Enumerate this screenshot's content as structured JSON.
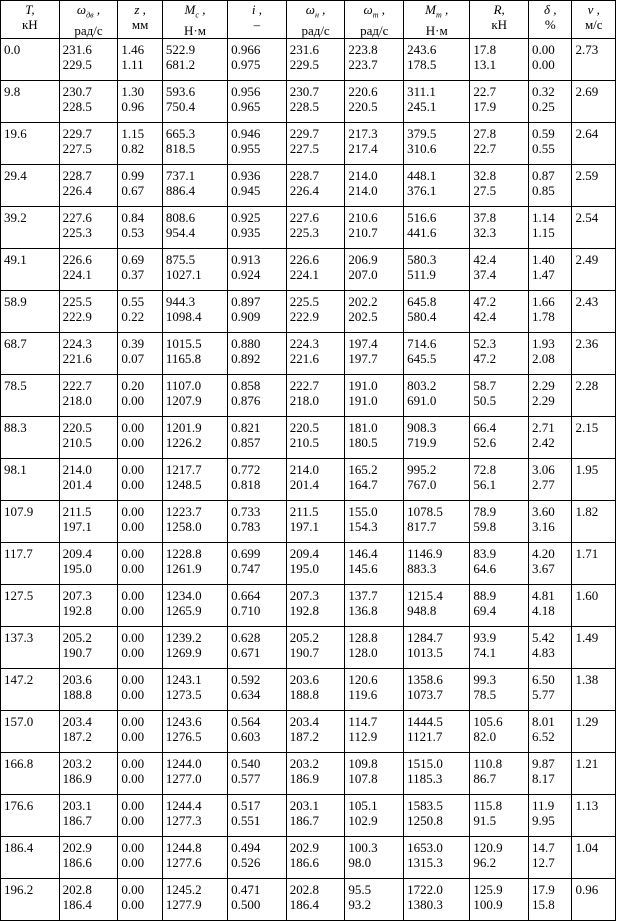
{
  "headers": [
    {
      "sym": "T,",
      "sub": "",
      "unit": "кН"
    },
    {
      "sym": "ω",
      "sub": "дв",
      "unit": "рад/с",
      "tail": " ,"
    },
    {
      "sym": "z ,",
      "sub": "",
      "unit": "мм"
    },
    {
      "sym": "M",
      "sub": "c",
      "unit": "Н·м",
      "tail": " ,"
    },
    {
      "sym": "i ,",
      "sub": "",
      "unit": "–"
    },
    {
      "sym": "ω",
      "sub": "н",
      "unit": "рад/с",
      "tail": " ,"
    },
    {
      "sym": "ω",
      "sub": "т",
      "unit": "рад/с",
      "tail": " ,"
    },
    {
      "sym": "M",
      "sub": "т",
      "unit": "Н·м",
      "tail": " ,"
    },
    {
      "sym": "R,",
      "sub": "",
      "unit": "кН"
    },
    {
      "sym": "δ ,",
      "sub": "",
      "unit": "%"
    },
    {
      "sym": "ν ,",
      "sub": "",
      "unit": "м/с"
    }
  ],
  "rows": [
    {
      "T": "0.0",
      "w_dv": [
        "231.6",
        "229.5"
      ],
      "z": [
        "1.46",
        "1.11"
      ],
      "Mc": [
        "522.9",
        "681.2"
      ],
      "i": [
        "0.966",
        "0.975"
      ],
      "w_n": [
        "231.6",
        "229.5"
      ],
      "w_t": [
        "223.8",
        "223.7"
      ],
      "Mt": [
        "243.6",
        "178.5"
      ],
      "R": [
        "17.8",
        "13.1"
      ],
      "delta": [
        "0.00",
        "0.00"
      ],
      "v": "2.73"
    },
    {
      "T": "9.8",
      "w_dv": [
        "230.7",
        "228.5"
      ],
      "z": [
        "1.30",
        "0.96"
      ],
      "Mc": [
        "593.6",
        "750.4"
      ],
      "i": [
        "0.956",
        "0.965"
      ],
      "w_n": [
        "230.7",
        "228.5"
      ],
      "w_t": [
        "220.6",
        "220.5"
      ],
      "Mt": [
        "311.1",
        "245.1"
      ],
      "R": [
        "22.7",
        "17.9"
      ],
      "delta": [
        "0.32",
        "0.25"
      ],
      "v": "2.69"
    },
    {
      "T": "19.6",
      "w_dv": [
        "229.7",
        "227.5"
      ],
      "z": [
        "1.15",
        "0.82"
      ],
      "Mc": [
        "665.3",
        "818.5"
      ],
      "i": [
        "0.946",
        "0.955"
      ],
      "w_n": [
        "229.7",
        "227.5"
      ],
      "w_t": [
        "217.3",
        "217.4"
      ],
      "Mt": [
        "379.5",
        "310.6"
      ],
      "R": [
        "27.8",
        "22.7"
      ],
      "delta": [
        "0.59",
        "0.55"
      ],
      "v": "2.64"
    },
    {
      "T": "29.4",
      "w_dv": [
        "228.7",
        "226.4"
      ],
      "z": [
        "0.99",
        "0.67"
      ],
      "Mc": [
        "737.1",
        "886.4"
      ],
      "i": [
        "0.936",
        "0.945"
      ],
      "w_n": [
        "228.7",
        "226.4"
      ],
      "w_t": [
        "214.0",
        "214.0"
      ],
      "Mt": [
        "448.1",
        "376.1"
      ],
      "R": [
        "32.8",
        "27.5"
      ],
      "delta": [
        "0.87",
        "0.85"
      ],
      "v": "2.59"
    },
    {
      "T": "39.2",
      "w_dv": [
        "227.6",
        "225.3"
      ],
      "z": [
        "0.84",
        "0.53"
      ],
      "Mc": [
        "808.6",
        "954.4"
      ],
      "i": [
        "0.925",
        "0.935"
      ],
      "w_n": [
        "227.6",
        "225.3"
      ],
      "w_t": [
        "210.6",
        "210.7"
      ],
      "Mt": [
        "516.6",
        "441.6"
      ],
      "R": [
        "37.8",
        "32.3"
      ],
      "delta": [
        "1.14",
        "1.15"
      ],
      "v": "2.54"
    },
    {
      "T": "49.1",
      "w_dv": [
        "226.6",
        "224.1"
      ],
      "z": [
        "0.69",
        "0.37"
      ],
      "Mc": [
        "875.5",
        "1027.1"
      ],
      "i": [
        "0.913",
        "0.924"
      ],
      "w_n": [
        "226.6",
        "224.1"
      ],
      "w_t": [
        "206.9",
        "207.0"
      ],
      "Mt": [
        "580.3",
        "511.9"
      ],
      "R": [
        "42.4",
        "37.4"
      ],
      "delta": [
        "1.40",
        "1.47"
      ],
      "v": "2.49"
    },
    {
      "T": "58.9",
      "w_dv": [
        "225.5",
        "222.9"
      ],
      "z": [
        "0.55",
        "0.22"
      ],
      "Mc": [
        "944.3",
        "1098.4"
      ],
      "i": [
        "0.897",
        "0.909"
      ],
      "w_n": [
        "225.5",
        "222.9"
      ],
      "w_t": [
        "202.2",
        "202.5"
      ],
      "Mt": [
        "645.8",
        "580.4"
      ],
      "R": [
        "47.2",
        "42.4"
      ],
      "delta": [
        "1.66",
        "1.78"
      ],
      "v": "2.43"
    },
    {
      "T": "68.7",
      "w_dv": [
        "224.3",
        "221.6"
      ],
      "z": [
        "0.39",
        "0.07"
      ],
      "Mc": [
        "1015.5",
        "1165.8"
      ],
      "i": [
        "0.880",
        "0.892"
      ],
      "w_n": [
        "224.3",
        "221.6"
      ],
      "w_t": [
        "197.4",
        "197.7"
      ],
      "Mt": [
        "714.6",
        "645.5"
      ],
      "R": [
        "52.3",
        "47.2"
      ],
      "delta": [
        "1.93",
        "2.08"
      ],
      "v": "2.36"
    },
    {
      "T": "78.5",
      "w_dv": [
        "222.7",
        "218.0"
      ],
      "z": [
        "0.20",
        "0.00"
      ],
      "Mc": [
        "1107.0",
        "1207.9"
      ],
      "i": [
        "0.858",
        "0.876"
      ],
      "w_n": [
        "222.7",
        "218.0"
      ],
      "w_t": [
        "191.0",
        "191.0"
      ],
      "Mt": [
        "803.2",
        "691.0"
      ],
      "R": [
        "58.7",
        "50.5"
      ],
      "delta": [
        "2.29",
        "2.29"
      ],
      "v": "2.28"
    },
    {
      "T": "88.3",
      "w_dv": [
        "220.5",
        "210.5"
      ],
      "z": [
        "0.00",
        "0.00"
      ],
      "Mc": [
        "1201.9",
        "1226.2"
      ],
      "i": [
        "0.821",
        "0.857"
      ],
      "w_n": [
        "220.5",
        "210.5"
      ],
      "w_t": [
        "181.0",
        "180.5"
      ],
      "Mt": [
        "908.3",
        "719.9"
      ],
      "R": [
        "66.4",
        "52.6"
      ],
      "delta": [
        "2.71",
        "2.42"
      ],
      "v": "2.15"
    },
    {
      "T": "98.1",
      "w_dv": [
        "214.0",
        "201.4"
      ],
      "z": [
        "0.00",
        "0.00"
      ],
      "Mc": [
        "1217.7",
        "1248.5"
      ],
      "i": [
        "0.772",
        "0.818"
      ],
      "w_n": [
        "214.0",
        "201.4"
      ],
      "w_t": [
        "165.2",
        "164.7"
      ],
      "Mt": [
        "995.2",
        "767.0"
      ],
      "R": [
        "72.8",
        "56.1"
      ],
      "delta": [
        "3.06",
        "2.77"
      ],
      "v": "1.95"
    },
    {
      "T": "107.9",
      "w_dv": [
        "211.5",
        "197.1"
      ],
      "z": [
        "0.00",
        "0.00"
      ],
      "Mc": [
        "1223.7",
        "1258.0"
      ],
      "i": [
        "0.733",
        "0.783"
      ],
      "w_n": [
        "211.5",
        "197.1"
      ],
      "w_t": [
        "155.0",
        "154.3"
      ],
      "Mt": [
        "1078.5",
        "817.7"
      ],
      "R": [
        "78.9",
        "59.8"
      ],
      "delta": [
        "3.60",
        "3.16"
      ],
      "v": "1.82"
    },
    {
      "T": "117.7",
      "w_dv": [
        "209.4",
        "195.0"
      ],
      "z": [
        "0.00",
        "0.00"
      ],
      "Mc": [
        "1228.8",
        "1261.9"
      ],
      "i": [
        "0.699",
        "0.747"
      ],
      "w_n": [
        "209.4",
        "195.0"
      ],
      "w_t": [
        "146.4",
        "145.6"
      ],
      "Mt": [
        "1146.9",
        "883.3"
      ],
      "R": [
        "83.9",
        "64.6"
      ],
      "delta": [
        "4.20",
        "3.67"
      ],
      "v": "1.71"
    },
    {
      "T": "127.5",
      "w_dv": [
        "207.3",
        "192.8"
      ],
      "z": [
        "0.00",
        "0.00"
      ],
      "Mc": [
        "1234.0",
        "1265.9"
      ],
      "i": [
        "0.664",
        "0.710"
      ],
      "w_n": [
        "207.3",
        "192.8"
      ],
      "w_t": [
        "137.7",
        "136.8"
      ],
      "Mt": [
        "1215.4",
        "948.8"
      ],
      "R": [
        "88.9",
        "69.4"
      ],
      "delta": [
        "4.81",
        "4.18"
      ],
      "v": "1.60"
    },
    {
      "T": "137.3",
      "w_dv": [
        "205.2",
        "190.7"
      ],
      "z": [
        "0.00",
        "0.00"
      ],
      "Mc": [
        "1239.2",
        "1269.9"
      ],
      "i": [
        "0.628",
        "0.671"
      ],
      "w_n": [
        "205.2",
        "190.7"
      ],
      "w_t": [
        "128.8",
        "128.0"
      ],
      "Mt": [
        "1284.7",
        "1013.5"
      ],
      "R": [
        "93.9",
        "74.1"
      ],
      "delta": [
        "5.42",
        "4.83"
      ],
      "v": "1.49"
    },
    {
      "T": "147.2",
      "w_dv": [
        "203.6",
        "188.8"
      ],
      "z": [
        "0.00",
        "0.00"
      ],
      "Mc": [
        "1243.1",
        "1273.5"
      ],
      "i": [
        "0.592",
        "0.634"
      ],
      "w_n": [
        "203.6",
        "188.8"
      ],
      "w_t": [
        "120.6",
        "119.6"
      ],
      "Mt": [
        "1358.6",
        "1073.7"
      ],
      "R": [
        "99.3",
        "78.5"
      ],
      "delta": [
        "6.50",
        "5.77"
      ],
      "v": "1.38"
    },
    {
      "T": "157.0",
      "w_dv": [
        "203.4",
        "187.2"
      ],
      "z": [
        "0.00",
        "0.00"
      ],
      "Mc": [
        "1243.6",
        "1276.5"
      ],
      "i": [
        "0.564",
        "0.603"
      ],
      "w_n": [
        "203.4",
        "187.2"
      ],
      "w_t": [
        "114.7",
        "112.9"
      ],
      "Mt": [
        "1444.5",
        "1121.7"
      ],
      "R": [
        "105.6",
        "82.0"
      ],
      "delta": [
        "8.01",
        "6.52"
      ],
      "v": "1.29"
    },
    {
      "T": "166.8",
      "w_dv": [
        "203.2",
        "186.9"
      ],
      "z": [
        "0.00",
        "0.00"
      ],
      "Mc": [
        "1244.0",
        "1277.0"
      ],
      "i": [
        "0.540",
        "0.577"
      ],
      "w_n": [
        "203.2",
        "186.9"
      ],
      "w_t": [
        "109.8",
        "107.8"
      ],
      "Mt": [
        "1515.0",
        "1185.3"
      ],
      "R": [
        "110.8",
        "86.7"
      ],
      "delta": [
        "9.87",
        "8.17"
      ],
      "v": "1.21"
    },
    {
      "T": "176.6",
      "w_dv": [
        "203.1",
        "186.7"
      ],
      "z": [
        "0.00",
        "0.00"
      ],
      "Mc": [
        "1244.4",
        "1277.3"
      ],
      "i": [
        "0.517",
        "0.551"
      ],
      "w_n": [
        "203.1",
        "186.7"
      ],
      "w_t": [
        "105.1",
        "102.9"
      ],
      "Mt": [
        "1583.5",
        "1250.8"
      ],
      "R": [
        "115.8",
        "91.5"
      ],
      "delta": [
        "11.9",
        "9.95"
      ],
      "v": "1.13"
    },
    {
      "T": "186.4",
      "w_dv": [
        "202.9",
        "186.6"
      ],
      "z": [
        "0.00",
        "0.00"
      ],
      "Mc": [
        "1244.8",
        "1277.6"
      ],
      "i": [
        "0.494",
        "0.526"
      ],
      "w_n": [
        "202.9",
        "186.6"
      ],
      "w_t": [
        "100.3",
        "98.0"
      ],
      "Mt": [
        "1653.0",
        "1315.3"
      ],
      "R": [
        "120.9",
        "96.2"
      ],
      "delta": [
        "14.7",
        "12.7"
      ],
      "v": "1.04"
    },
    {
      "T": "196.2",
      "w_dv": [
        "202.8",
        "186.4"
      ],
      "z": [
        "0.00",
        "0.00"
      ],
      "Mc": [
        "1245.2",
        "1277.9"
      ],
      "i": [
        "0.471",
        "0.500"
      ],
      "w_n": [
        "202.8",
        "186.4"
      ],
      "w_t": [
        "95.5",
        "93.2"
      ],
      "Mt": [
        "1722.0",
        "1380.3"
      ],
      "R": [
        "125.9",
        "100.9"
      ],
      "delta": [
        "17.9",
        "15.8"
      ],
      "v": "0.96"
    }
  ]
}
